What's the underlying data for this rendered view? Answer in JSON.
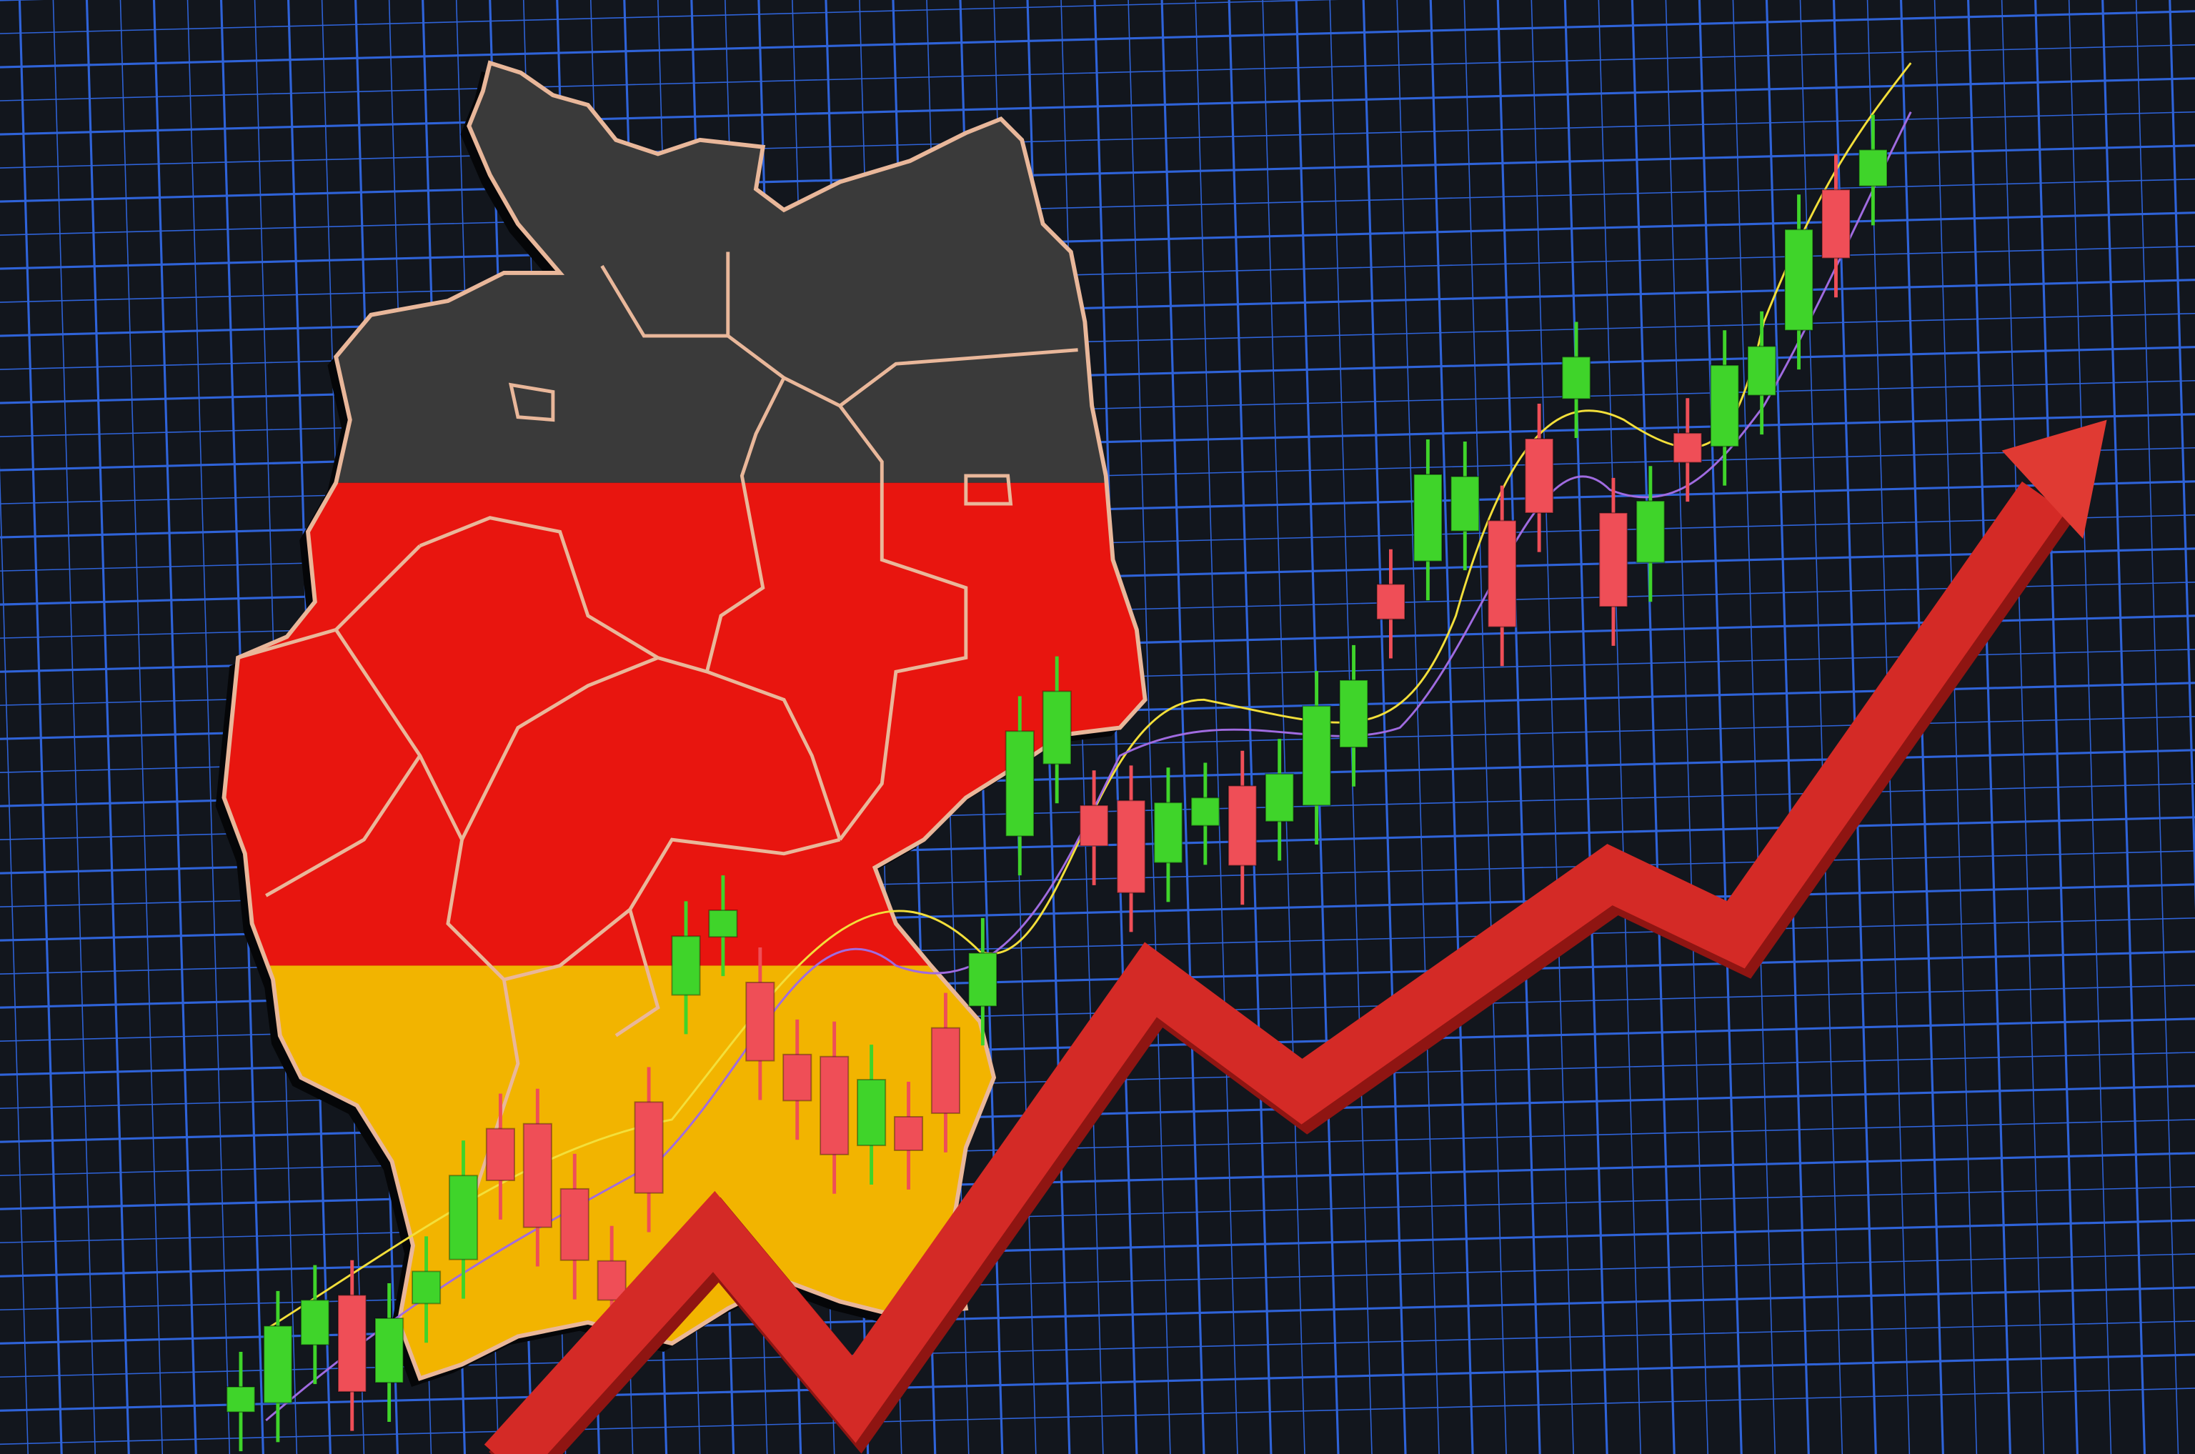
{
  "scene": {
    "subject": "germany-map-with-candlestick-chart-and-rising-arrow",
    "colors": {
      "background": "#12161d",
      "grid": "#2f63d8",
      "flag_black": "#3a3a3a",
      "flag_red": "#e8150f",
      "flag_gold": "#f2b400",
      "border": "#e9b79a",
      "candle_up": "#3fd42a",
      "candle_down": "#ef4e57",
      "arrow": "#d42a26",
      "ma_yellow": "#f3df3a",
      "ma_purple": "#a06be0"
    }
  }
}
